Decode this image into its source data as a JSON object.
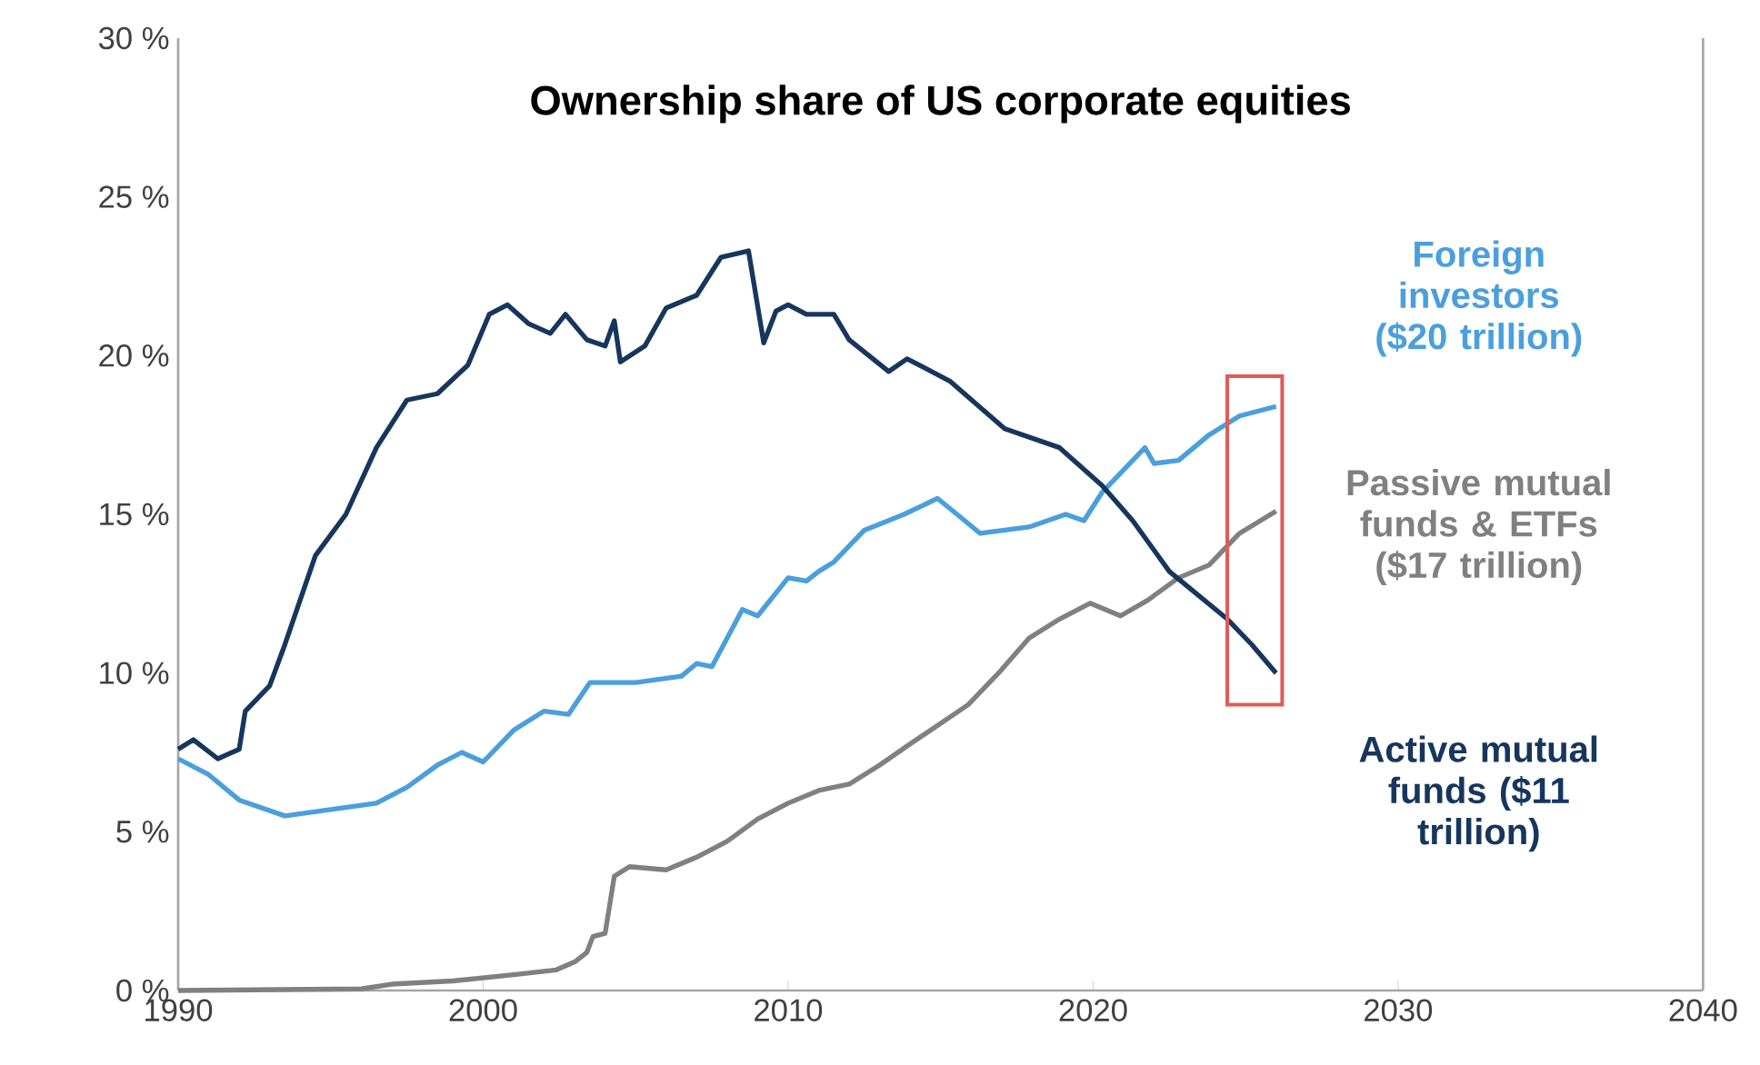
{
  "chart_data": {
    "type": "line",
    "title": "Ownership share of US corporate equities",
    "xlim": [
      1990,
      2040
    ],
    "xticks": [
      1990,
      2000,
      2010,
      2020,
      2030,
      2040
    ],
    "ylim": [
      0,
      30
    ],
    "yticks": [
      {
        "value": 0,
        "label": "0 %"
      },
      {
        "value": 5,
        "label": "5 %"
      },
      {
        "value": 10,
        "label": "10 %"
      },
      {
        "value": 15,
        "label": "15 %"
      },
      {
        "value": 20,
        "label": "20 %"
      },
      {
        "value": 25,
        "label": "25 %"
      },
      {
        "value": 30,
        "label": "30 %"
      }
    ],
    "grid": false,
    "legend": false,
    "marker": "none",
    "line_style": "solid",
    "series": [
      {
        "name": "Foreign investors ($20 trillion)",
        "color": "#4a9fdc",
        "x": [
          1990,
          1991,
          1992,
          1993.5,
          1995,
          1996.5,
          1997.5,
          1998.5,
          1999.3,
          2000,
          2001,
          2002,
          2002.8,
          2003.5,
          2005,
          2006.5,
          2007,
          2007.5,
          2008.5,
          2009,
          2010,
          2010.6,
          2011,
          2011.5,
          2012.5,
          2013.8,
          2014.9,
          2016.3,
          2017.9,
          2019.1,
          2019.7,
          2020.3,
          2021.1,
          2021.7,
          2022,
          2022.8,
          2023.8,
          2024.8,
          2026
        ],
        "values": [
          7.3,
          6.8,
          6.0,
          5.5,
          5.7,
          5.9,
          6.4,
          7.1,
          7.5,
          7.2,
          8.2,
          8.8,
          8.7,
          9.7,
          9.7,
          9.9,
          10.3,
          10.2,
          12.0,
          11.8,
          13.0,
          12.9,
          13.2,
          13.5,
          14.5,
          15.0,
          15.5,
          14.4,
          14.6,
          15.0,
          14.8,
          15.7,
          16.5,
          17.1,
          16.6,
          16.7,
          17.5,
          18.1,
          18.4
        ]
      },
      {
        "name": "Passive mutual funds & ETFs ($17 trillion)",
        "color": "#808080",
        "x": [
          1990,
          1996,
          1997,
          1999,
          2001,
          2002.4,
          2003,
          2003.4,
          2003.6,
          2004,
          2004.3,
          2004.8,
          2006,
          2007,
          2008,
          2009,
          2010,
          2011,
          2012,
          2013,
          2013.9,
          2015.9,
          2016.9,
          2017.9,
          2018.9,
          2019.9,
          2020.9,
          2021.8,
          2022.8,
          2023.8,
          2024.8,
          2026
        ],
        "values": [
          0,
          0.05,
          0.2,
          0.3,
          0.5,
          0.65,
          0.9,
          1.2,
          1.7,
          1.8,
          3.6,
          3.9,
          3.8,
          4.2,
          4.7,
          5.4,
          5.9,
          6.3,
          6.5,
          7.1,
          7.7,
          9.0,
          10.0,
          11.1,
          11.7,
          12.2,
          11.8,
          12.3,
          13.0,
          13.4,
          14.4,
          15.1
        ]
      },
      {
        "name": "Active mutual funds ($11 trillion)",
        "color": "#17365d",
        "x": [
          1990,
          1990.5,
          1991.3,
          1992,
          1992.2,
          1993,
          1993.5,
          1994.5,
          1995.5,
          1996.5,
          1997.5,
          1998.5,
          1999.5,
          2000.2,
          2000.8,
          2001.5,
          2002.2,
          2002.7,
          2003.4,
          2004,
          2004.3,
          2004.5,
          2005.3,
          2006,
          2007,
          2007.8,
          2008.7,
          2009.2,
          2009.6,
          2010,
          2010.6,
          2011.5,
          2012,
          2013.3,
          2013.9,
          2015.3,
          2017.1,
          2018.9,
          2020.3,
          2021.3,
          2022.5,
          2024.4,
          2025.2,
          2026
        ],
        "values": [
          7.6,
          7.9,
          7.3,
          7.6,
          8.8,
          9.6,
          10.9,
          13.7,
          15.0,
          17.1,
          18.6,
          18.8,
          19.7,
          21.3,
          21.6,
          21.0,
          20.7,
          21.3,
          20.5,
          20.3,
          21.1,
          19.8,
          20.3,
          21.5,
          21.9,
          23.1,
          23.3,
          20.4,
          21.4,
          21.6,
          21.3,
          21.3,
          20.5,
          19.5,
          19.9,
          19.2,
          17.7,
          17.1,
          15.9,
          14.8,
          13.2,
          11.7,
          10.9,
          10.0
        ]
      }
    ]
  }
}
